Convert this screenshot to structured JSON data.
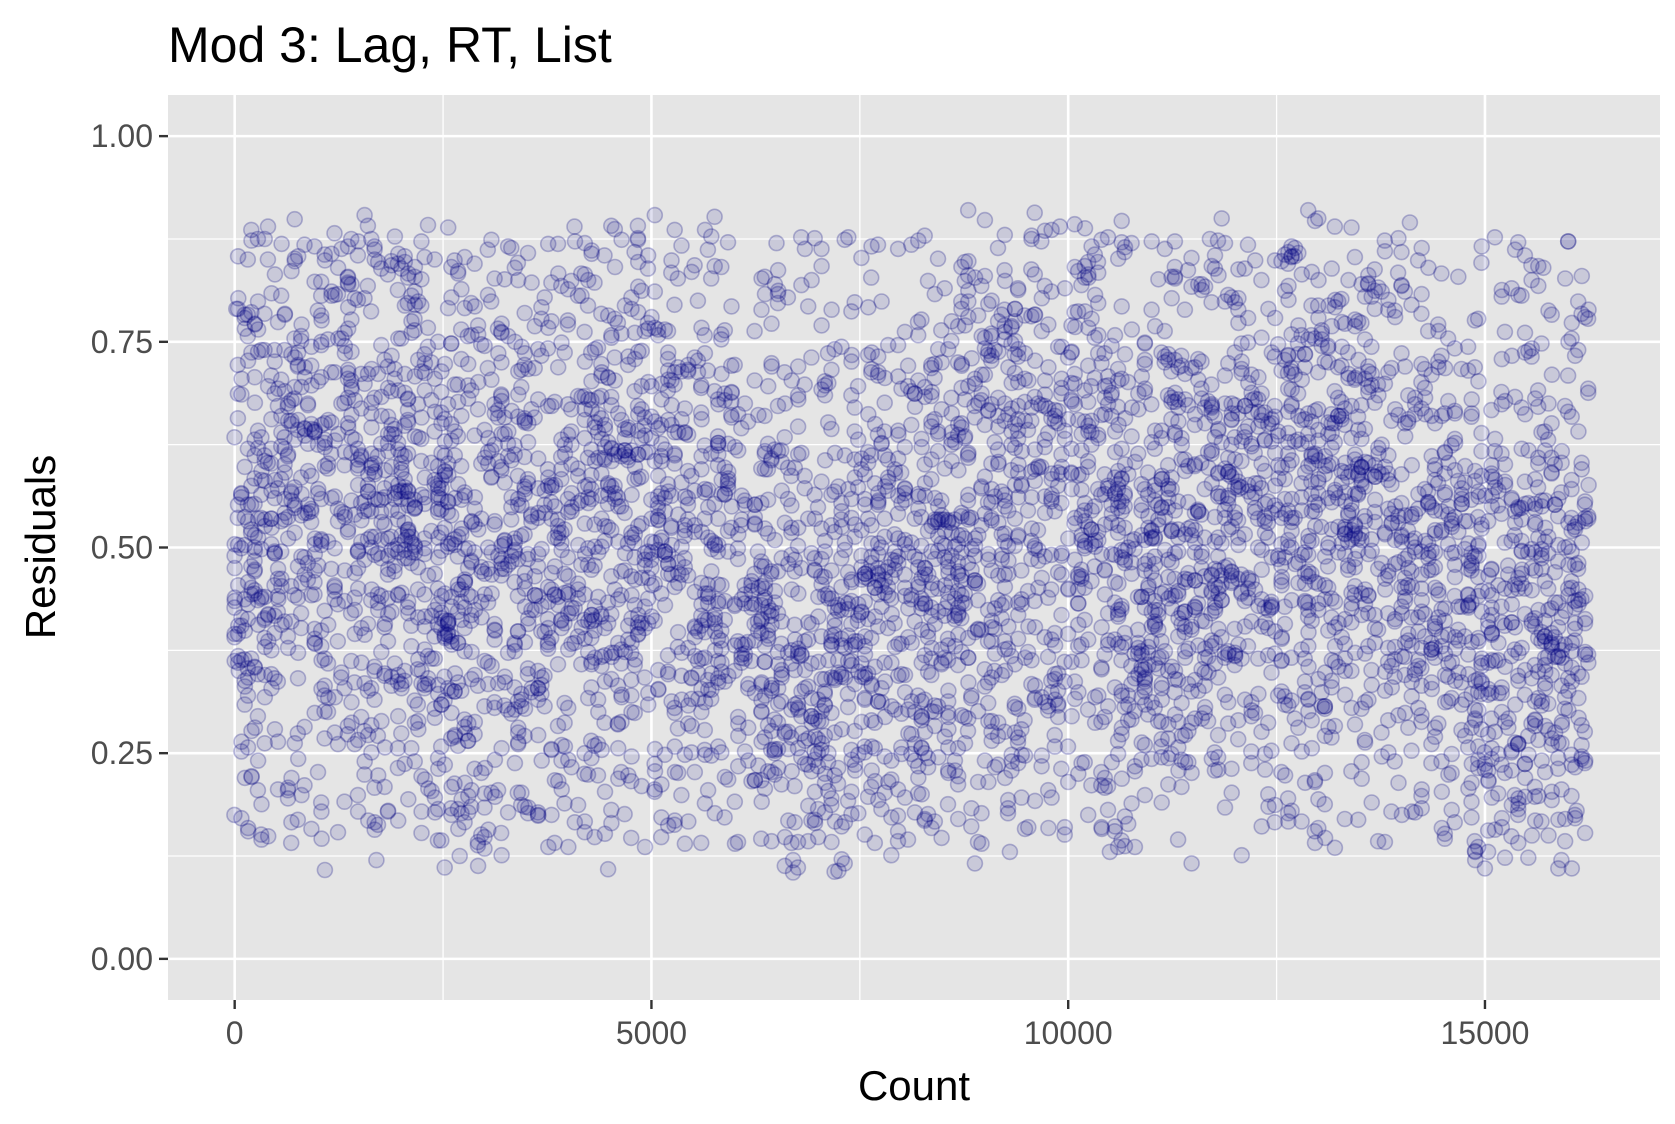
{
  "chart_data": {
    "type": "scatter",
    "title": "Mod 3: Lag, RT, List",
    "xlabel": "Count",
    "ylabel": "Residuals",
    "xlim": [
      -800,
      17100
    ],
    "ylim": [
      -0.05,
      1.05
    ],
    "x_ticks": [
      0,
      5000,
      10000,
      15000
    ],
    "x_tick_labels": [
      "0",
      "5000",
      "10000",
      "15000"
    ],
    "y_ticks": [
      0,
      0.25,
      0.5,
      0.75,
      1.0
    ],
    "y_tick_labels": [
      "0.00",
      "0.25",
      "0.50",
      "0.75",
      "1.00"
    ],
    "grid": true,
    "panel_background": "#e5e5e5",
    "point_color": "#000080",
    "point_fill_opacity": 0.12,
    "point_stroke_opacity": 0.25,
    "generator": {
      "n_points": 5200,
      "x_max": 16250,
      "y_min": 0.105,
      "y_max": 0.91,
      "seed": 7
    },
    "points": [
      [
        400,
        0.89
      ],
      [
        8800,
        0.91
      ],
      [
        13000,
        0.9
      ],
      [
        14100,
        0.895
      ],
      [
        9900,
        0.89
      ],
      [
        6700,
        0.105
      ],
      [
        6700,
        0.12
      ],
      [
        1700,
        0.12
      ],
      [
        2700,
        0.125
      ],
      [
        10500,
        0.13
      ],
      [
        13200,
        0.135
      ],
      [
        9300,
        0.13
      ],
      [
        4200,
        0.87
      ],
      [
        6500,
        0.87
      ],
      [
        11700,
        0.875
      ],
      [
        15700,
        0.84
      ],
      [
        16200,
        0.78
      ],
      [
        16100,
        0.18
      ],
      [
        20,
        0.79
      ],
      [
        50,
        0.35
      ]
    ]
  }
}
